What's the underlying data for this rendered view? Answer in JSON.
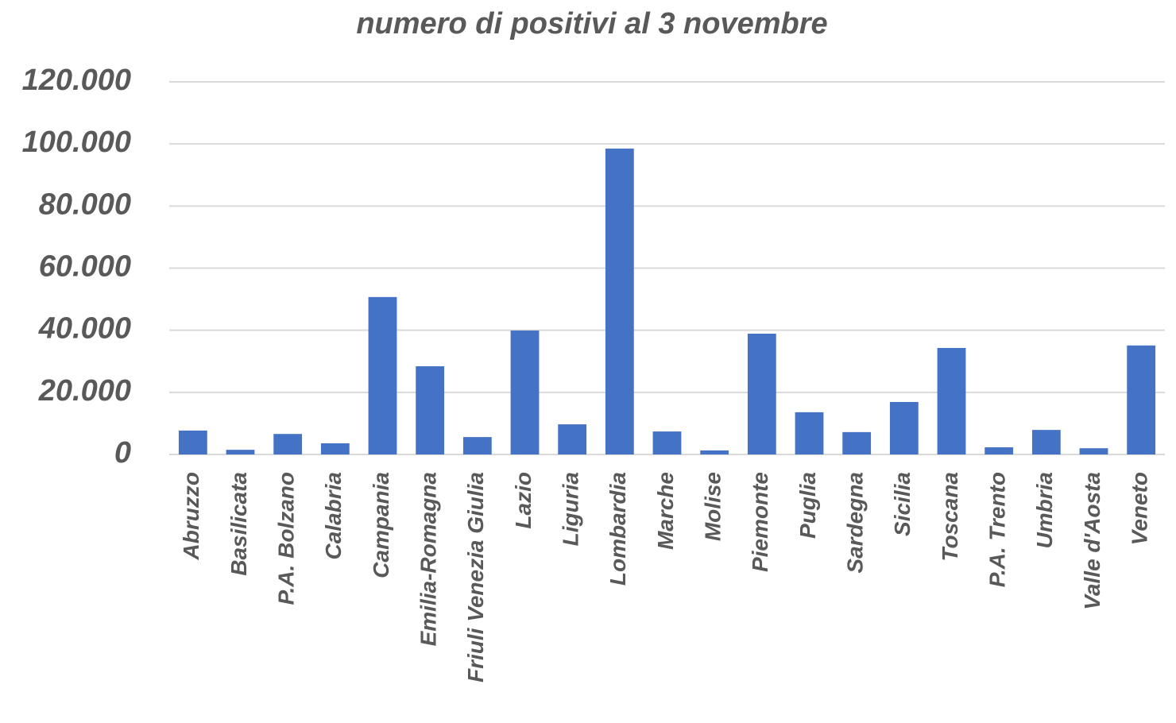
{
  "chart_data": {
    "type": "bar",
    "title": "numero di positivi al 3 novembre",
    "categories": [
      "Abruzzo",
      "Basilicata",
      "P.A. Bolzano",
      "Calabria",
      "Campania",
      "Emilia-Romagna",
      "Friuli Venezia Giulia",
      "Lazio",
      "Liguria",
      "Lombardia",
      "Marche",
      "Molise",
      "Piemonte",
      "Puglia",
      "Sardegna",
      "Sicilia",
      "Toscana",
      "P.A. Trento",
      "Umbria",
      "Valle d'Aosta",
      "Veneto"
    ],
    "values": [
      7700,
      1500,
      6600,
      3600,
      50700,
      28400,
      5600,
      39900,
      9700,
      98500,
      7400,
      1300,
      38900,
      13600,
      7200,
      16900,
      34300,
      2300,
      7900,
      2000,
      35100
    ],
    "color": "#4472c4",
    "ylim": [
      0,
      120000
    ],
    "yticks": [
      0,
      {
        "value": 20000,
        "label": "20.000"
      },
      {
        "value": 40000,
        "label": "40.000"
      },
      {
        "value": 60000,
        "label": "60.000"
      },
      {
        "value": 80000,
        "label": "80.000"
      },
      {
        "value": 100000,
        "label": "100.000"
      },
      {
        "value": 120000,
        "label": "120.000"
      }
    ],
    "grid": true
  }
}
